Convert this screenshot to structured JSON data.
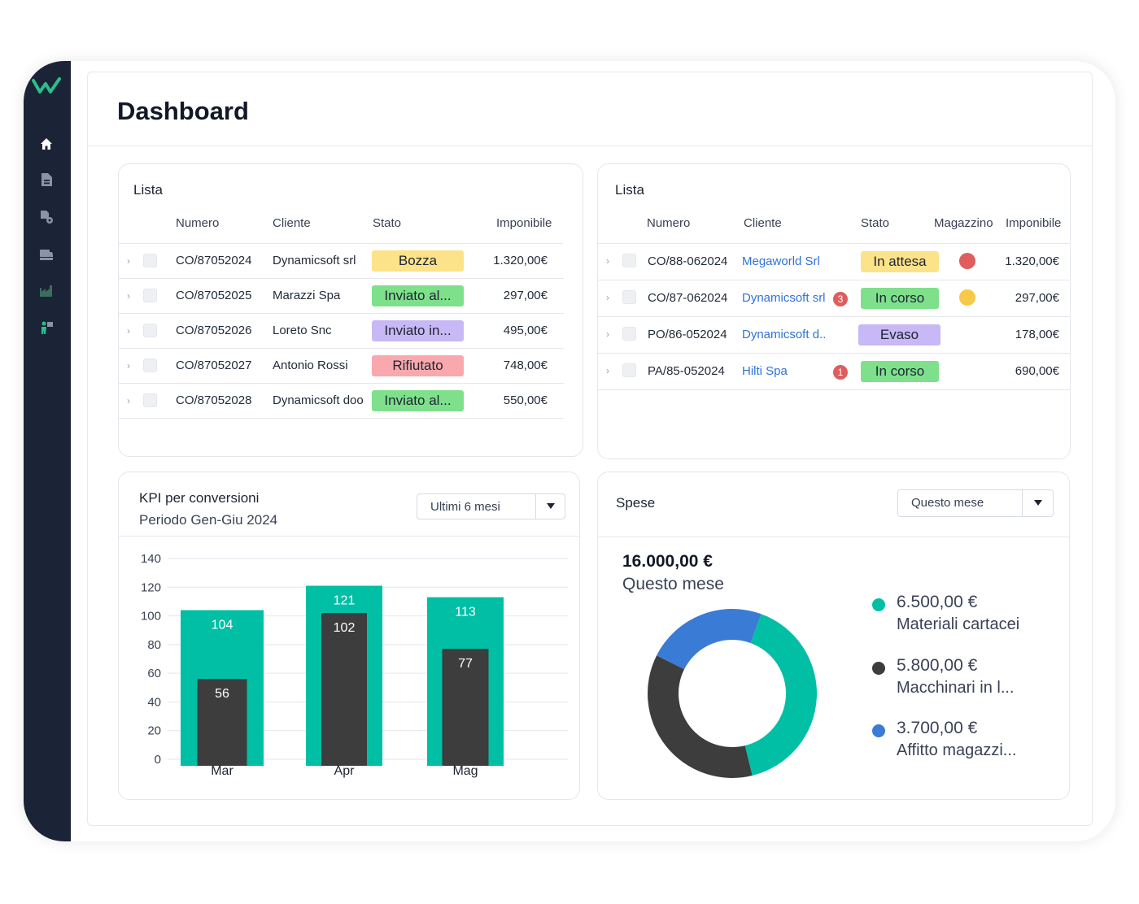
{
  "page": {
    "title": "Dashboard"
  },
  "sidebar": {
    "items": [
      {
        "icon": "home-icon",
        "active": true
      },
      {
        "icon": "document-icon",
        "active": false
      },
      {
        "icon": "document-settings-icon",
        "active": false
      },
      {
        "icon": "truck-icon",
        "active": false
      },
      {
        "icon": "factory-icon",
        "active": false
      },
      {
        "icon": "user-flag-icon",
        "active": false
      }
    ]
  },
  "colors": {
    "sidebar": "#1b2336",
    "teal": "#00bfa5",
    "dark": "#3d3d3d",
    "blue": "#3a7bd5",
    "bozza": "#fce38a",
    "inviato_green": "#7ee08b",
    "inviato_purple": "#c8b8f5",
    "rifiutato": "#f9a8ae",
    "in_attesa": "#fce38a",
    "in_corso": "#7ee08b",
    "evaso": "#c8b8f5"
  },
  "list1": {
    "title": "Lista",
    "headers": {
      "numero": "Numero",
      "cliente": "Cliente",
      "stato": "Stato",
      "imponibile": "Imponibile"
    },
    "rows": [
      {
        "numero": "CO/87052024",
        "cliente": "Dynamicsoft srl",
        "stato": "Bozza",
        "stato_color": "#fce38a",
        "imponibile": "1.320,00€"
      },
      {
        "numero": "CO/87052025",
        "cliente": "Marazzi Spa",
        "stato": "Inviato al...",
        "stato_color": "#7ee08b",
        "imponibile": "297,00€"
      },
      {
        "numero": "CO/87052026",
        "cliente": "Loreto Snc",
        "stato": "Inviato in...",
        "stato_color": "#c8b8f5",
        "imponibile": "495,00€"
      },
      {
        "numero": "CO/87052027",
        "cliente": "Antonio Rossi",
        "stato": "Rifiutato",
        "stato_color": "#f9a8ae",
        "imponibile": "748,00€"
      },
      {
        "numero": "CO/87052028",
        "cliente": "Dynamicsoft doo",
        "stato": "Inviato al...",
        "stato_color": "#7ee08b",
        "imponibile": "550,00€"
      }
    ]
  },
  "list2": {
    "title": "Lista",
    "headers": {
      "numero": "Numero",
      "cliente": "Cliente",
      "stato": "Stato",
      "magazzino": "Magazzino",
      "imponibile": "Imponibile"
    },
    "rows": [
      {
        "numero": "CO/88-062024",
        "cliente": "Megaworld Srl",
        "notif": "",
        "stato": "In attesa",
        "stato_color": "#fce38a",
        "magazzino_color": "#e05d5d",
        "imponibile": "1.320,00€"
      },
      {
        "numero": "CO/87-062024",
        "cliente": "Dynamicsoft srl",
        "notif": "3",
        "stato": "In corso",
        "stato_color": "#7ee08b",
        "magazzino_color": "#f7c948",
        "imponibile": "297,00€"
      },
      {
        "numero": "PO/86-052024",
        "cliente": "Dynamicsoft d..",
        "notif": "",
        "stato": "Evaso",
        "stato_color": "#c8b8f5",
        "magazzino_color": "",
        "imponibile": "178,00€"
      },
      {
        "numero": "PA/85-052024",
        "cliente": "Hilti Spa",
        "notif": "1",
        "stato": "In corso",
        "stato_color": "#7ee08b",
        "magazzino_color": "",
        "imponibile": "690,00€"
      }
    ]
  },
  "kpi": {
    "title": "KPI per conversioni",
    "subtitle": "Periodo Gen-Giu 2024",
    "dropdown": "Ultimi 6 mesi"
  },
  "spese": {
    "title": "Spese",
    "dropdown": "Questo mese",
    "total": "16.000,00 €",
    "total_label": "Questo mese",
    "legend": [
      {
        "value": "6.500,00 €",
        "label": "Materiali cartacei",
        "color": "#00bfa5"
      },
      {
        "value": "5.800,00 €",
        "label": "Macchinari in l...",
        "color": "#3d3d3d"
      },
      {
        "value": "3.700,00 €",
        "label": "Affitto magazzi...",
        "color": "#3a7bd5"
      }
    ]
  },
  "chart_data": [
    {
      "type": "bar",
      "categories": [
        "Mar",
        "Apr",
        "Mag"
      ],
      "series": [
        {
          "values": [
            104,
            121,
            113
          ],
          "color": "#00bfa5"
        },
        {
          "values": [
            56,
            102,
            77
          ],
          "color": "#3d3d3d"
        }
      ],
      "ylim": [
        0,
        140
      ],
      "yticks": [
        0,
        20,
        40,
        60,
        80,
        100,
        120,
        140
      ],
      "grid": true
    },
    {
      "type": "pie",
      "donut": true,
      "labels": [
        "Materiali cartacei",
        "Macchinari in l...",
        "Affitto magazzi..."
      ],
      "values": [
        6500,
        5800,
        3700
      ],
      "colors": [
        "#00bfa5",
        "#3d3d3d",
        "#3a7bd5"
      ]
    }
  ]
}
